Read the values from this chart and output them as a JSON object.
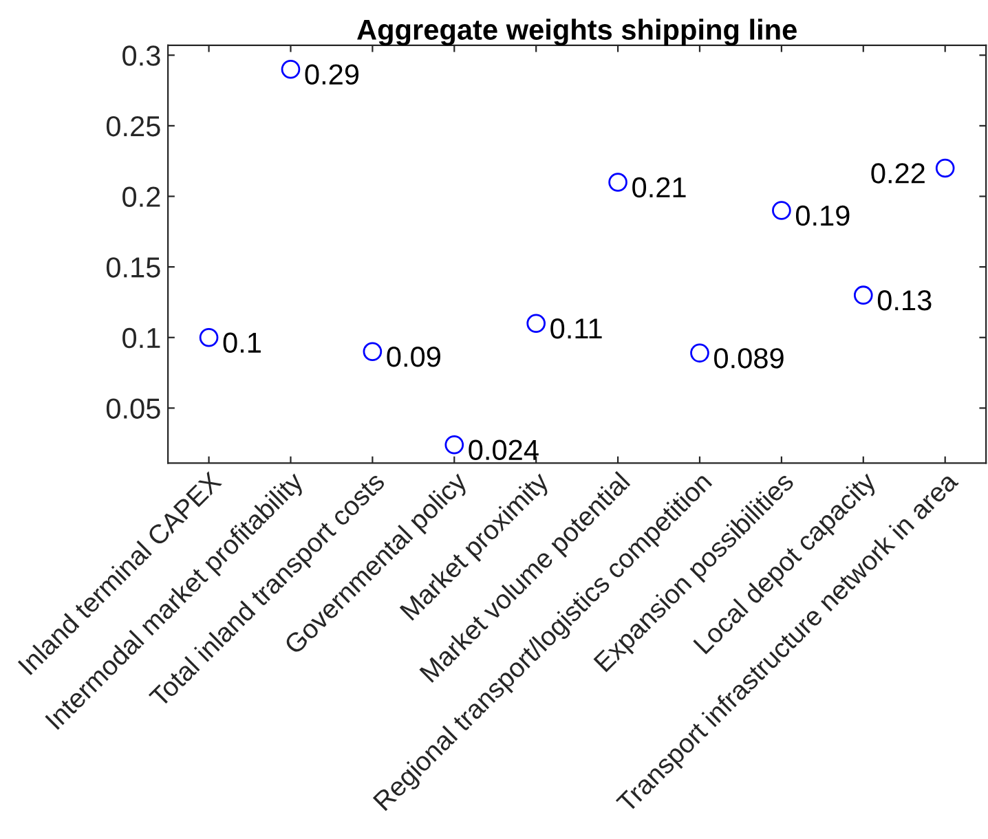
{
  "chart_data": {
    "type": "scatter",
    "title": "Aggregate weights shipping line",
    "categories": [
      "Inland terminal CAPEX",
      "Intermodal market profitability",
      "Total inland transport costs",
      "Governmental policy",
      "Market proximity",
      "Market volume potential",
      "Regional transport/logistics competition",
      "Expansion possibilities",
      "Local depot capacity",
      "Transport infrastructure network in area"
    ],
    "series": [
      {
        "color": "#0000ff",
        "values": [
          0.1,
          0.29,
          0.09,
          0.024,
          0.11,
          0.21,
          0.089,
          0.19,
          0.13,
          0.22
        ]
      }
    ],
    "ylim": [
      0.011,
      0.307
    ],
    "yticks": [
      0.05,
      0.1,
      0.15,
      0.2,
      0.25,
      0.3
    ],
    "data_labels": true,
    "marker": "circle",
    "grid": false,
    "legend": false
  }
}
